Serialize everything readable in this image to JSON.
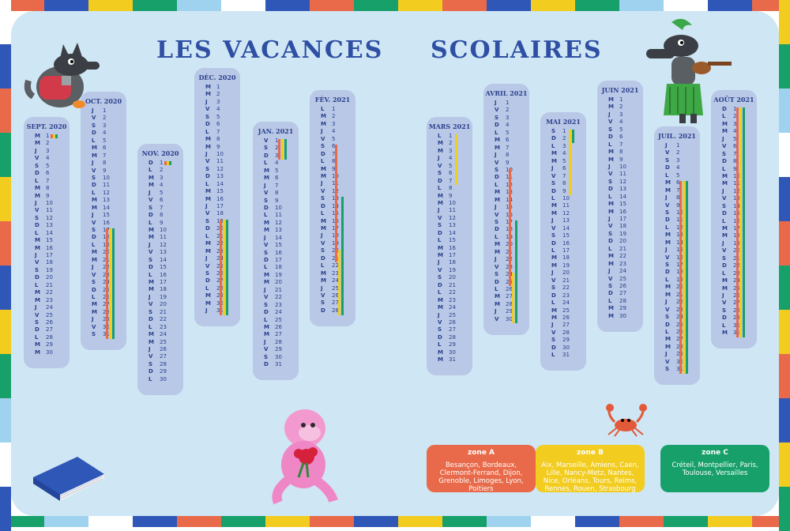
{
  "title": {
    "left": "LES VACANCES",
    "right": "SCOLAIRES"
  },
  "zone_colors": {
    "A": "#e86a4a",
    "B": "#f2cc1e",
    "C": "#17a06a"
  },
  "months": [
    {
      "label": "SEPT. 2020",
      "start": 1,
      "days": 30,
      "letters": "MMJVSDLMMJVSDLMMJVSDLMMJVSDLMM",
      "marker": {
        "day": 1,
        "zones": [
          "A",
          "B",
          "C"
        ]
      },
      "bars": []
    },
    {
      "label": "OCT. 2020",
      "start": 1,
      "days": 31,
      "letters": "JVSDLMMJVSDLMMJVSDLMMJVSDLMMJVS",
      "bars": [
        {
          "zone": "A",
          "from": 17,
          "to": 31
        },
        {
          "zone": "B",
          "from": 17,
          "to": 31
        },
        {
          "zone": "C",
          "from": 17,
          "to": 31
        }
      ]
    },
    {
      "label": "NOV. 2020",
      "start": 1,
      "days": 30,
      "letters": "DLMMJVSDLMMJVSDLMMJVSDLMMJVSDL",
      "marker": {
        "day": 1,
        "zones": [
          "A",
          "B",
          "C"
        ]
      },
      "bars": []
    },
    {
      "label": "DÉC. 2020",
      "start": 1,
      "days": 31,
      "letters": "MMJVSDLMMJVSDLMMJVSDLMMJVSDLMMJ",
      "bars": [
        {
          "zone": "A",
          "from": 19,
          "to": 31
        },
        {
          "zone": "B",
          "from": 19,
          "to": 31
        },
        {
          "zone": "C",
          "from": 19,
          "to": 31
        }
      ]
    },
    {
      "label": "JAN. 2021",
      "start": 1,
      "days": 31,
      "letters": "VSDLMMJVSDLMMJVSDLMMJVSDLMMJVSD",
      "bars": [
        {
          "zone": "A",
          "from": 1,
          "to": 3
        },
        {
          "zone": "B",
          "from": 1,
          "to": 3
        },
        {
          "zone": "C",
          "from": 1,
          "to": 3
        }
      ]
    },
    {
      "label": "FÉV. 2021",
      "start": 1,
      "days": 28,
      "letters": "LMMJVSDLMMJVSDLMMJVSDLMMJVSD",
      "bars": [
        {
          "zone": "A",
          "from": 6,
          "to": 21
        },
        {
          "zone": "C",
          "from": 13,
          "to": 28
        },
        {
          "zone": "B",
          "from": 20,
          "to": 28
        }
      ]
    },
    {
      "label": "MARS 2021",
      "start": 1,
      "days": 31,
      "letters": "LMMJVSDLMMJVSDLMMJVSDLMMJVSDLMM",
      "bars": [
        {
          "zone": "B",
          "from": 1,
          "to": 7
        }
      ]
    },
    {
      "label": "AVRIL 2021",
      "start": 1,
      "days": 30,
      "letters": "JVSDLMMJVSDLMMJVSDLMMJVSDLMMJV",
      "bars": [
        {
          "zone": "A",
          "from": 10,
          "to": 25
        },
        {
          "zone": "C",
          "from": 17,
          "to": 30
        },
        {
          "zone": "B",
          "from": 24,
          "to": 30
        }
      ]
    },
    {
      "label": "MAI 2021",
      "start": 1,
      "days": 31,
      "letters": "SDLMMJVSDLMMJVSDLMMJVSDLMMJVSDL",
      "bars": [
        {
          "zone": "C",
          "from": 1,
          "to": 2
        },
        {
          "zone": "B",
          "from": 1,
          "to": 9
        }
      ]
    },
    {
      "label": "JUIN 2021",
      "start": 1,
      "days": 30,
      "letters": "MMJVSDLMMJVSDLMMJVSDLMMJVSDLMM",
      "bars": []
    },
    {
      "label": "JUIL. 2021",
      "start": 1,
      "days": 31,
      "letters": "JVSDLMMJVSDLMMJVSDLMMJVSDLMMJVS",
      "bars": [
        {
          "zone": "A",
          "from": 6,
          "to": 31
        },
        {
          "zone": "B",
          "from": 6,
          "to": 31
        },
        {
          "zone": "C",
          "from": 6,
          "to": 31
        }
      ]
    },
    {
      "label": "AOÛT 2021",
      "start": 1,
      "days": 31,
      "letters": "DLMMJVSDLMMJVSDLMMJVSDLMMJVSDLM",
      "bars": [
        {
          "zone": "A",
          "from": 1,
          "to": 31
        },
        {
          "zone": "B",
          "from": 1,
          "to": 31
        },
        {
          "zone": "C",
          "from": 1,
          "to": 31
        }
      ]
    }
  ],
  "zones": [
    {
      "key": "A",
      "label": "zone A",
      "cities": "Besançon, Bordeaux, Clermont-Ferrand, Dijon, Grenoble, Limoges, Lyon, Poitiers"
    },
    {
      "key": "B",
      "label": "zone B",
      "cities": "Aix, Marseille, Amiens, Caen, Lille, Nancy-Metz, Nantes, Nice, Orléans, Tours, Reims, Rennes, Rouen, Strasbourg"
    },
    {
      "key": "C",
      "label": "zone C",
      "cities": "Créteil, Montpellier, Paris, Toulouse, Versailles"
    }
  ],
  "decorations": [
    "wolf-with-cup-icon",
    "wolf-with-ukulele-icon",
    "pink-monkey-with-flowers-icon",
    "crab-icon",
    "blue-book-icon"
  ]
}
